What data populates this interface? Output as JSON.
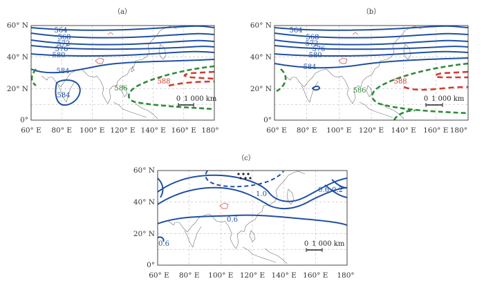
{
  "panels": [
    {
      "label": "（a）",
      "x_ticks": [
        "60° E",
        "80° E",
        "100° E",
        "120° E",
        "140° E",
        "160° E",
        "180°"
      ],
      "y_ticks": [
        "60° N",
        "40° N",
        "20° N",
        "0°"
      ],
      "contours": [
        "564",
        "568",
        "572",
        "576",
        "580",
        "584",
        "584",
        "586",
        "588"
      ],
      "contour_colors": {
        "blue": "#1f4fa3",
        "green": "#2e8b3a",
        "red": "#d43a2c"
      },
      "scale_bar": {
        "left": "0",
        "right": "1 000 km"
      }
    },
    {
      "label": "（b）",
      "x_ticks": [
        "60° E",
        "80° E",
        "100° E",
        "120° E",
        "140° E",
        "160° E",
        "180°"
      ],
      "y_ticks": [
        "60° N",
        "40° N",
        "20° N",
        "0°"
      ],
      "contours": [
        "564",
        "568",
        "572",
        "576",
        "580",
        "584",
        "586",
        "588"
      ],
      "contour_colors": {
        "blue": "#1f4fa3",
        "green": "#2e8b3a",
        "red": "#d43a2c"
      },
      "scale_bar": {
        "left": "0",
        "right": "1 000 km"
      }
    },
    {
      "label": "（c）",
      "x_ticks": [
        "60° E",
        "80° E",
        "100° E",
        "120° E",
        "140° E",
        "160° E",
        "180°"
      ],
      "y_ticks": [
        "60° N",
        "40° N",
        "20° N",
        "0°"
      ],
      "contours": [
        "1.0",
        "0.6",
        "0.2",
        "0.6",
        "0.6"
      ],
      "contour_colors": {
        "blue": "#1f4fa3"
      },
      "scale_bar": {
        "left": "0",
        "right": "1 000 km"
      }
    }
  ]
}
